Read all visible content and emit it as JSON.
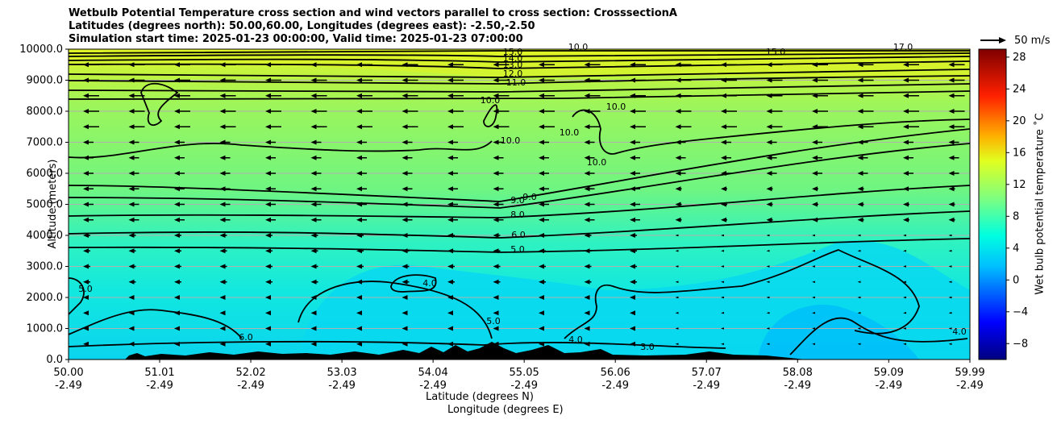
{
  "title": {
    "line1": "Wetbulb Potential Temperature cross section and wind vectors parallel to cross section: CrosssectionA",
    "line2": "Latitudes (degrees north): 50.00,60.00, Longitudes (degrees east): -2.50,-2.50",
    "line3": "Simulation start time: 2025-01-23 00:00:00, Valid time: 2025-01-23 07:00:00"
  },
  "legend": {
    "vector_label": "50 m/s"
  },
  "chart_data": {
    "type": "heatmap",
    "title": "Wetbulb Potential Temperature cross section and wind vectors parallel to cross section: CrosssectionA",
    "ylabel": "Altitude (meters)",
    "xlabel_1": "Latitude (degrees N)",
    "xlabel_2": "Longitude (degrees E)",
    "colorbar_label": "Wet bulb potential temperature ˚C",
    "ylim": [
      0,
      10000
    ],
    "xlim": [
      50.0,
      59.99
    ],
    "y_ticks": [
      "0.0",
      "1000.0",
      "2000.0",
      "3000.0",
      "4000.0",
      "5000.0",
      "6000.0",
      "7000.0",
      "8000.0",
      "9000.0",
      "10000.0"
    ],
    "x_ticks": [
      {
        "lat": "50.00",
        "lon": "-2.49"
      },
      {
        "lat": "51.01",
        "lon": "-2.49"
      },
      {
        "lat": "52.02",
        "lon": "-2.49"
      },
      {
        "lat": "53.03",
        "lon": "-2.49"
      },
      {
        "lat": "54.04",
        "lon": "-2.49"
      },
      {
        "lat": "55.05",
        "lon": "-2.49"
      },
      {
        "lat": "56.06",
        "lon": "-2.49"
      },
      {
        "lat": "57.07",
        "lon": "-2.49"
      },
      {
        "lat": "58.08",
        "lon": "-2.49"
      },
      {
        "lat": "59.09",
        "lon": "-2.49"
      },
      {
        "lat": "59.99",
        "lon": "-2.49"
      }
    ],
    "colorbar_ticks": [
      "28",
      "24",
      "20",
      "16",
      "12",
      "8",
      "4",
      "0",
      "−4",
      "−8"
    ],
    "colorbar_range": [
      -10,
      29
    ],
    "contour_labels": [
      "15.0",
      "14.0",
      "13.0",
      "12.0",
      "11.0",
      "10.0",
      "10.0",
      "10.0",
      "10.0",
      "10.0",
      "9.0",
      "9.0",
      "8.0",
      "6.0",
      "5.0",
      "5.0",
      "4.0",
      "5.0",
      "4.0",
      "3.0",
      "4.0",
      "6.0",
      "15.0",
      "17.0",
      "10.0"
    ]
  }
}
